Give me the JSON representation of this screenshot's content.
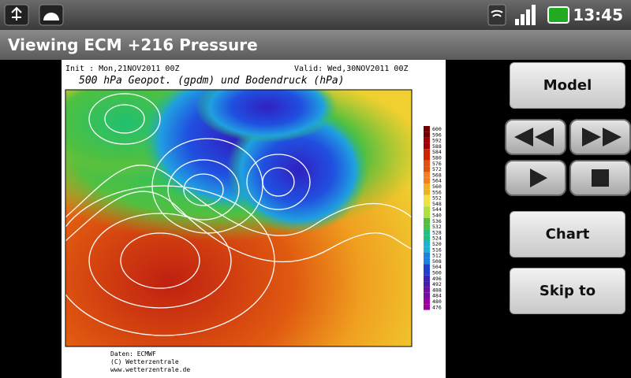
{
  "status_bar": {
    "time": "13:45"
  },
  "title_bar": {
    "title": "Viewing ECM +216 Pressure"
  },
  "map": {
    "init": "Init : Mon,21NOV2011 00Z",
    "valid": "Valid: Wed,30NOV2011 00Z",
    "heading": "500 hPa Geopot. (gpdm) und Bodendruck (hPa)",
    "footer": [
      "Daten: ECMWF",
      "(C) Wetterzentrale",
      "www.wetterzentrale.de"
    ],
    "scale": [
      "600",
      "596",
      "592",
      "588",
      "584",
      "580",
      "576",
      "572",
      "568",
      "564",
      "560",
      "556",
      "552",
      "548",
      "544",
      "540",
      "536",
      "532",
      "528",
      "524",
      "520",
      "516",
      "512",
      "508",
      "504",
      "500",
      "496",
      "492",
      "488",
      "484",
      "480",
      "476"
    ]
  },
  "buttons": {
    "model": "Model",
    "chart": "Chart",
    "skip": "Skip to"
  }
}
